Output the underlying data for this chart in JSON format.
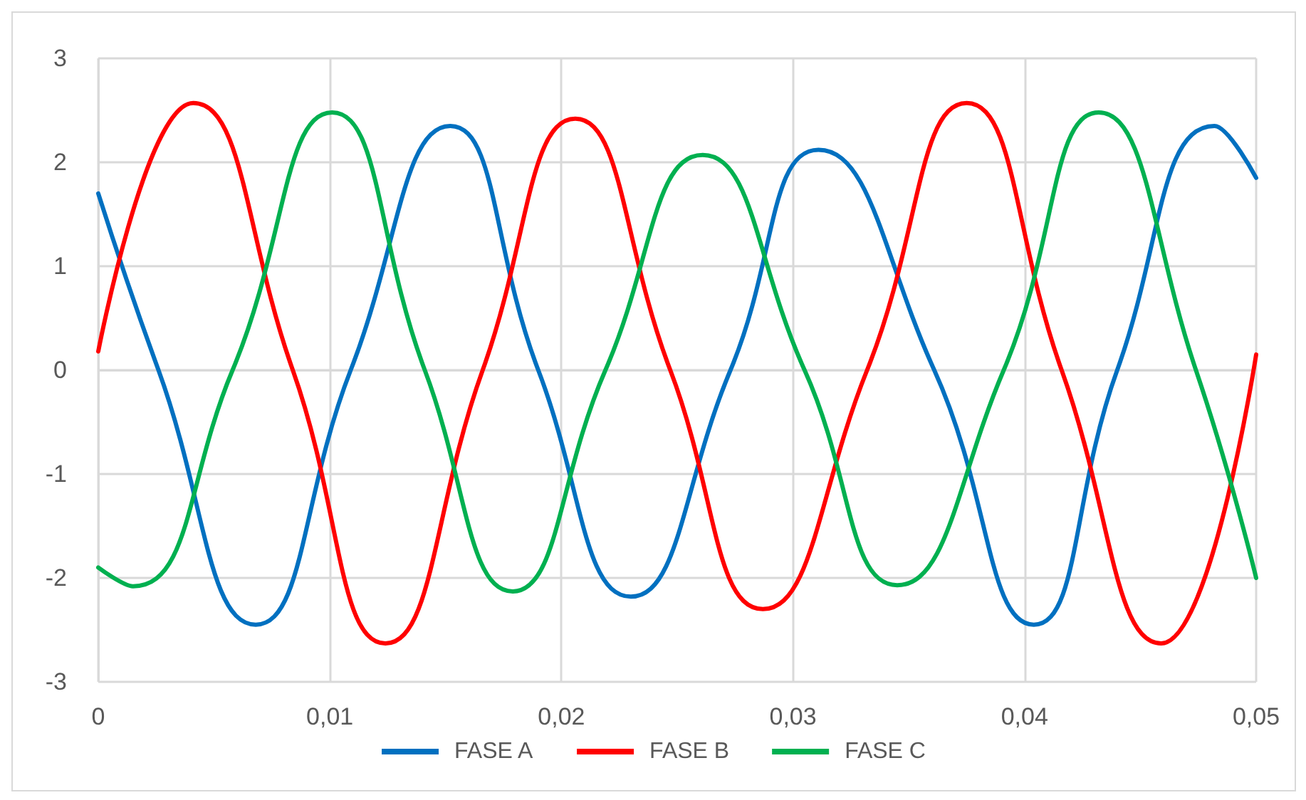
{
  "chart_data": {
    "type": "line",
    "legend": "bottom",
    "grid": true,
    "marker": "none",
    "line_style": "solid",
    "xlim": [
      0,
      0.05
    ],
    "xticks": [
      0,
      {
        "value": 0.01,
        "label": "0,01"
      },
      {
        "value": 0.02,
        "label": "0,02"
      },
      {
        "value": 0.03,
        "label": "0,03"
      },
      {
        "value": 0.04,
        "label": "0,04"
      },
      {
        "value": 0.05,
        "label": "0,05"
      }
    ],
    "ylim": [
      -3,
      3
    ],
    "yticks": [
      -3,
      -2,
      -1,
      0,
      1,
      2,
      3
    ],
    "series": [
      {
        "name": "FASE A",
        "color": "#0070c0",
        "x": [
          0,
          0.0026,
          0.0068,
          0.0109,
          0.0152,
          0.019,
          0.023,
          0.0273,
          0.0311,
          0.0361,
          0.0404,
          0.044,
          0.0482,
          0.05
        ],
        "values": [
          1.7,
          0,
          -2.45,
          0,
          2.35,
          0,
          -2.18,
          0,
          2.12,
          0,
          -2.45,
          0,
          2.35,
          1.85
        ]
      },
      {
        "name": "FASE B",
        "color": "#ff0000",
        "x": [
          0,
          0.0041,
          0.0084,
          0.0124,
          0.0166,
          0.0206,
          0.0247,
          0.0287,
          0.0332,
          0.0375,
          0.0416,
          0.0459,
          0.05
        ],
        "values": [
          0.18,
          2.57,
          0,
          -2.63,
          0,
          2.42,
          0,
          -2.3,
          0,
          2.57,
          0,
          -2.63,
          0.15
        ]
      },
      {
        "name": "FASE C",
        "color": "#00b050",
        "x": [
          0,
          0.0015,
          0.0058,
          0.0101,
          0.0141,
          0.0179,
          0.0219,
          0.0261,
          0.0305,
          0.0345,
          0.0391,
          0.0432,
          0.0474,
          0.05
        ],
        "values": [
          -1.9,
          -2.08,
          0,
          2.48,
          0,
          -2.13,
          0,
          2.07,
          0,
          -2.07,
          0,
          2.48,
          0,
          -2.0
        ]
      }
    ]
  }
}
